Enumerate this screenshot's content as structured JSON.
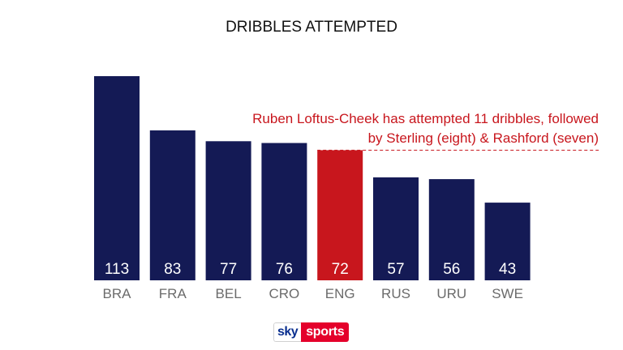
{
  "chart_data": {
    "type": "bar",
    "title": "DRIBBLES ATTEMPTED",
    "categories": [
      "BRA",
      "FRA",
      "BEL",
      "CRO",
      "ENG",
      "RUS",
      "URU",
      "SWE"
    ],
    "values": [
      113,
      83,
      77,
      76,
      72,
      57,
      56,
      43
    ],
    "highlight": "ENG",
    "xlabel": "",
    "ylabel": "",
    "ylim": [
      0,
      115
    ],
    "grid": false,
    "colors": {
      "bar": "#141a55",
      "highlight": "#c8161d",
      "annotation": "#c8161d"
    },
    "annotation": {
      "lines": [
        "Ruben Loftus-Cheek has attempted 11 dribbles, followed",
        "by Sterling (eight) & Rashford (seven)"
      ]
    }
  },
  "branding": {
    "logo_sky": "sky",
    "logo_sports": "sports"
  }
}
